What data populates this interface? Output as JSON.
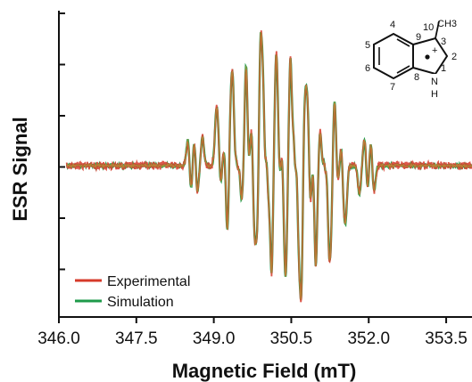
{
  "chart_data": {
    "type": "line",
    "title": "",
    "xlabel": "Magnetic Field (mT)",
    "ylabel": "ESR Signal",
    "xlim": [
      346.0,
      354.0
    ],
    "x_ticks": [
      "346.0",
      "347.5",
      "349.0",
      "350.5",
      "352.0",
      "353.5"
    ],
    "x_tick_values": [
      346.0,
      347.5,
      349.0,
      350.5,
      352.0,
      353.5
    ],
    "y_tick_count": 6,
    "legend_position": "bottom-left",
    "legend": [
      {
        "label": "Experimental",
        "color": "#d63a2a"
      },
      {
        "label": "Simulation",
        "color": "#1e9a4a"
      }
    ],
    "series": [
      {
        "name": "Experimental",
        "color": "#d63a2a"
      },
      {
        "name": "Simulation",
        "color": "#1e9a4a"
      }
    ],
    "overlap_color": "#b89a3a",
    "structure": {
      "name": "3-methylindole radical cation",
      "substituent": "CH3",
      "numbers": [
        "10",
        "3",
        "4",
        "9",
        "2",
        "5",
        "6",
        "7",
        "8",
        "1"
      ],
      "heteroatom": "N",
      "hydrogen": "H",
      "charge": "+"
    }
  }
}
